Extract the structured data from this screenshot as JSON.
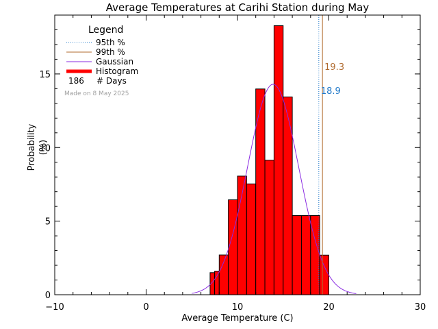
{
  "chart_data": {
    "type": "bar",
    "title": "Average Temperatures at Carihi Station during May",
    "xlabel": "Average Temperature (C)",
    "ylabel": "Probability",
    "ylabel_unit": "(%)",
    "xlim": [
      -10,
      30
    ],
    "ylim": [
      0,
      19
    ],
    "xticks": [
      -10,
      0,
      10,
      20,
      30
    ],
    "yticks": [
      0,
      5,
      10,
      15
    ],
    "bin_width": 1,
    "histogram": {
      "bin_starts": [
        7,
        7.5,
        8,
        9,
        10,
        11,
        12,
        13,
        14,
        15,
        16,
        17,
        18,
        19
      ],
      "bin_ends": [
        7.5,
        8,
        9,
        10,
        11,
        12,
        13,
        14,
        15,
        16,
        17,
        18,
        19,
        20
      ],
      "values": [
        1.5,
        1.6,
        2.7,
        6.45,
        8.06,
        7.53,
        13.98,
        9.14,
        18.28,
        13.44,
        5.38,
        5.38,
        5.38,
        2.69
      ]
    },
    "gaussian": {
      "mean": 13.9,
      "std": 2.8,
      "peak": 14.3
    },
    "percentiles": [
      {
        "name": "95th %",
        "value": 18.9,
        "label": "18.9",
        "color": "#1f78c8"
      },
      {
        "name": "99th %",
        "value": 19.3,
        "label": "19.3",
        "color": "#b06a2e"
      }
    ],
    "legend": {
      "title": "Legend",
      "entries": [
        {
          "label": "95th %",
          "style": "dotted",
          "color": "#1f78c8"
        },
        {
          "label": "99th %",
          "style": "solid",
          "color": "#b06a2e"
        },
        {
          "label": "Gaussian",
          "style": "solid",
          "color": "#8a2be2"
        },
        {
          "label": "Histogram",
          "style": "thick",
          "color": "#ff0000"
        }
      ],
      "count": "186",
      "count_label": "# Days",
      "placement": "top-left"
    },
    "made_on": "Made on 8 May 2025",
    "colors": {
      "histogram_fill": "#ff0000",
      "gaussian": "#8a2be2",
      "p95": "#1f78c8",
      "p99": "#b06a2e",
      "made_on": "#a0a0a0"
    }
  }
}
